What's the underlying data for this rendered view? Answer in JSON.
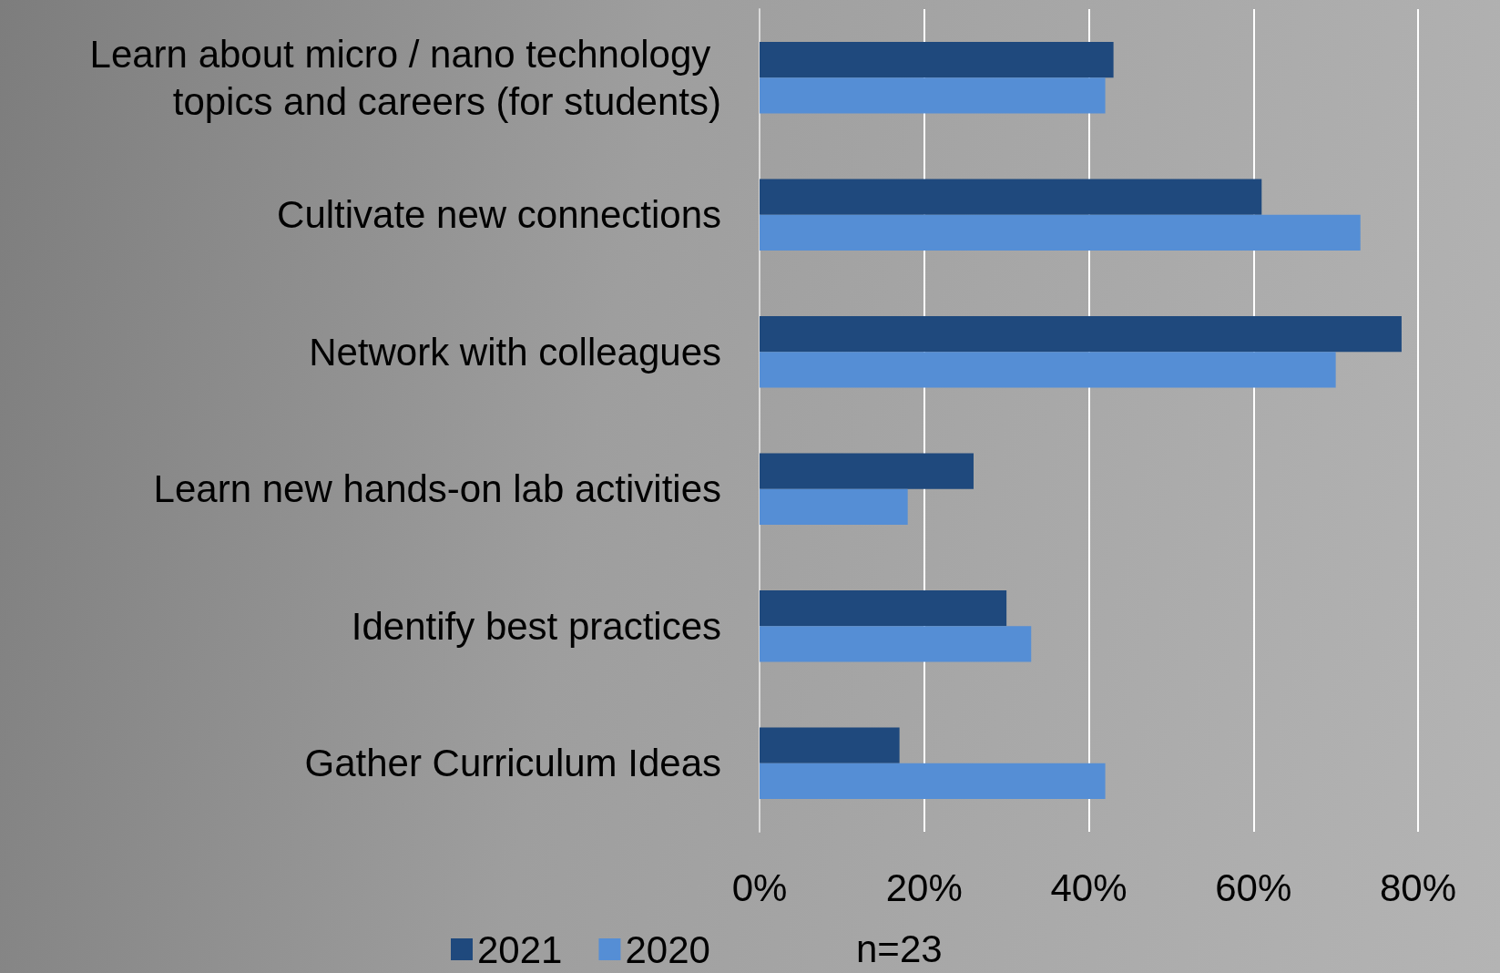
{
  "chart_data": {
    "type": "bar",
    "orientation": "horizontal",
    "categories": [
      "Learn about micro / nano technology topics and careers (for students)",
      "Cultivate new connections",
      "Network with colleagues",
      "Learn new hands-on lab activities",
      "Identify best practices",
      "Gather Curriculum Ideas"
    ],
    "series": [
      {
        "name": "2021",
        "color": "#1f497d",
        "values": [
          43,
          61,
          78,
          26,
          30,
          17
        ]
      },
      {
        "name": "2020",
        "color": "#558ed5",
        "values": [
          42,
          73,
          70,
          18,
          33,
          42
        ]
      }
    ],
    "xlim": [
      0,
      80
    ],
    "xticks": [
      {
        "value": 0,
        "label": "0%"
      },
      {
        "value": 20,
        "label": "20%"
      },
      {
        "value": 40,
        "label": "40%"
      },
      {
        "value": 60,
        "label": "60%"
      },
      {
        "value": 80,
        "label": "80%"
      }
    ],
    "grid": "x",
    "legend": "bottom",
    "annotations": [
      "n=23"
    ]
  }
}
